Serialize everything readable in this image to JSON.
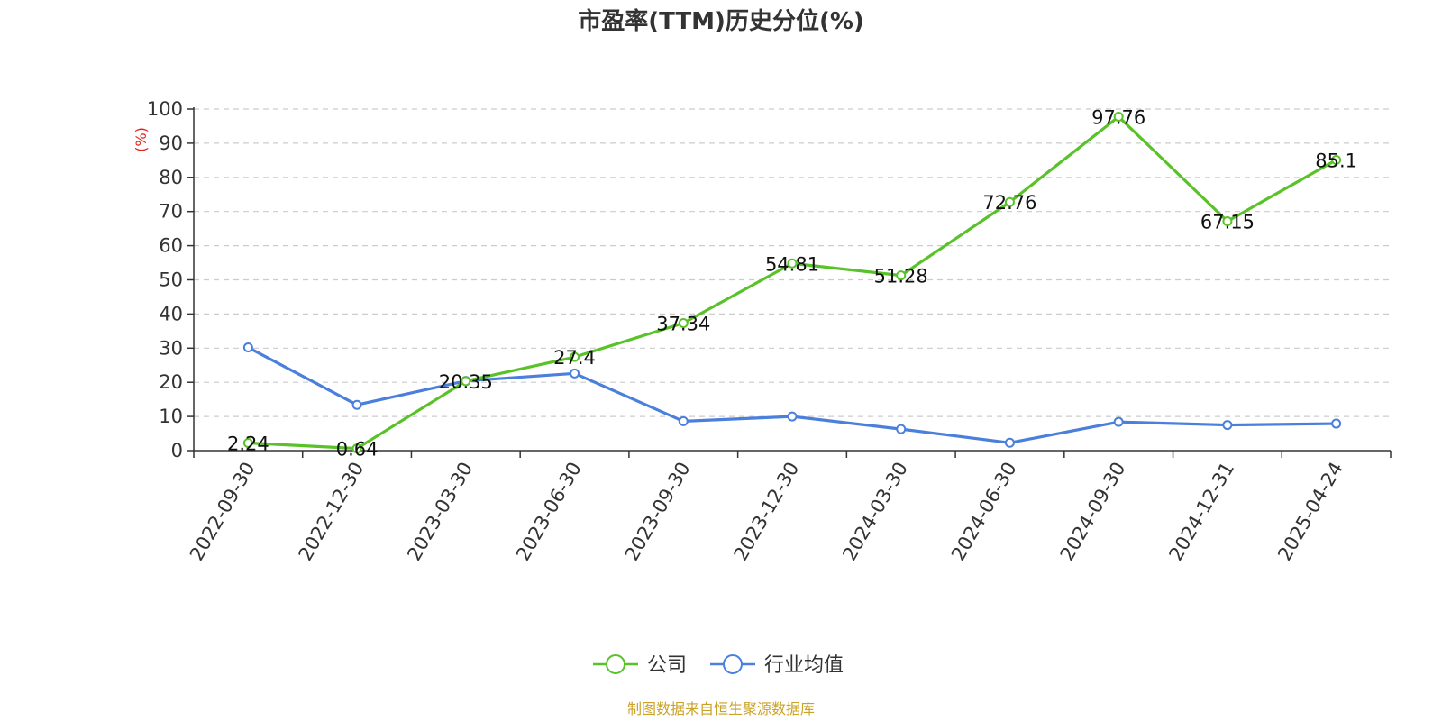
{
  "chart_data": {
    "type": "line",
    "title": "市盈率(TTM)历史分位(%)",
    "ylabel": "(%)",
    "ylim": [
      0,
      100
    ],
    "yticks": [
      0,
      10,
      20,
      30,
      40,
      50,
      60,
      70,
      80,
      90,
      100
    ],
    "grid": true,
    "legend_position": "bottom-center",
    "categories": [
      "2022-09-30",
      "2022-12-30",
      "2023-03-30",
      "2023-06-30",
      "2023-09-30",
      "2023-12-30",
      "2024-03-30",
      "2024-06-30",
      "2024-09-30",
      "2024-12-31",
      "2025-04-24"
    ],
    "series": [
      {
        "name": "公司",
        "color": "#5ac229",
        "values": [
          2.24,
          0.64,
          20.35,
          27.4,
          37.34,
          54.81,
          51.28,
          72.76,
          97.76,
          67.15,
          85.1
        ],
        "labels": [
          "2.24",
          "0.64",
          "20.35",
          "27.4",
          "37.34",
          "54.81",
          "51.28",
          "72.76",
          "97.76",
          "67.15",
          "85.1"
        ]
      },
      {
        "name": "行业均值",
        "color": "#4a7fdc",
        "values": [
          30.2,
          13.4,
          20.4,
          22.6,
          8.6,
          10.0,
          6.3,
          2.3,
          8.4,
          7.5,
          7.9
        ]
      }
    ]
  },
  "source": "制图数据来自恒生聚源数据库",
  "colors": {
    "title": "#333333",
    "axis": "#333333",
    "grid": "#cccccc",
    "ylabel": "#e0201b",
    "source": "#c9a227"
  }
}
